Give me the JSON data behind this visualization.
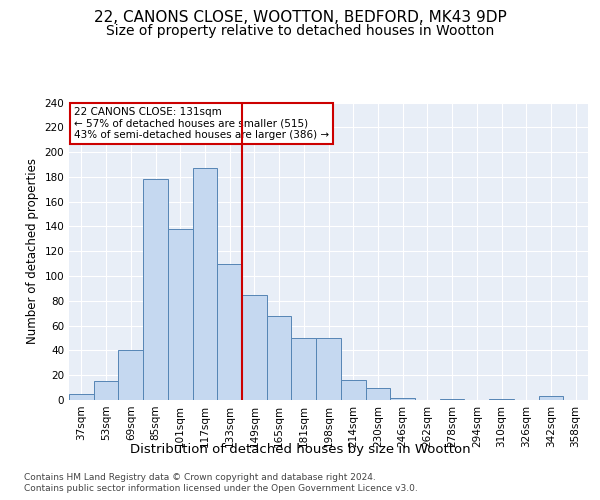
{
  "title1": "22, CANONS CLOSE, WOOTTON, BEDFORD, MK43 9DP",
  "title2": "Size of property relative to detached houses in Wootton",
  "xlabel": "Distribution of detached houses by size in Wootton",
  "ylabel": "Number of detached properties",
  "bins": [
    "37sqm",
    "53sqm",
    "69sqm",
    "85sqm",
    "101sqm",
    "117sqm",
    "133sqm",
    "149sqm",
    "165sqm",
    "181sqm",
    "198sqm",
    "214sqm",
    "230sqm",
    "246sqm",
    "262sqm",
    "278sqm",
    "294sqm",
    "310sqm",
    "326sqm",
    "342sqm",
    "358sqm"
  ],
  "values": [
    5,
    15,
    40,
    178,
    138,
    187,
    110,
    85,
    68,
    50,
    50,
    16,
    10,
    2,
    0,
    1,
    0,
    1,
    0,
    3,
    0
  ],
  "bar_color": "#c5d8f0",
  "bar_edge_color": "#5585b5",
  "vline_color": "#cc0000",
  "annotation_text": "22 CANONS CLOSE: 131sqm\n← 57% of detached houses are smaller (515)\n43% of semi-detached houses are larger (386) →",
  "annotation_box_color": "#ffffff",
  "annotation_box_edge_color": "#cc0000",
  "ylim": [
    0,
    240
  ],
  "yticks": [
    0,
    20,
    40,
    60,
    80,
    100,
    120,
    140,
    160,
    180,
    200,
    220,
    240
  ],
  "footer_line1": "Contains HM Land Registry data © Crown copyright and database right 2024.",
  "footer_line2": "Contains public sector information licensed under the Open Government Licence v3.0.",
  "bg_color": "#ffffff",
  "plot_bg_color": "#e8eef7",
  "title1_fontsize": 11,
  "title2_fontsize": 10,
  "xlabel_fontsize": 9.5,
  "ylabel_fontsize": 8.5,
  "tick_fontsize": 7.5,
  "footer_fontsize": 6.5
}
